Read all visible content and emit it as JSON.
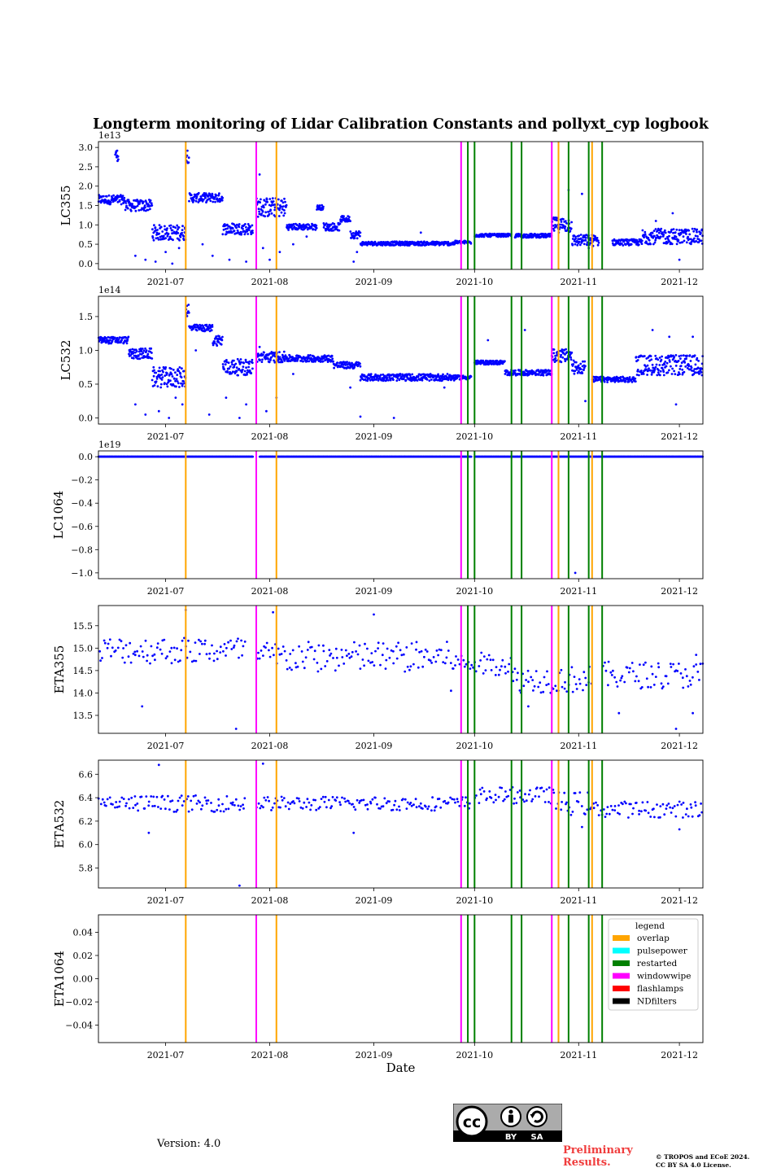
{
  "chart_data": {
    "type": "scatter",
    "title": "Longterm monitoring of Lidar Calibration Constants and pollyxt_cyp logbook",
    "xlabel": "Date",
    "x_range": [
      "2021-06-11",
      "2021-12-08"
    ],
    "x_ticks": [
      "2021-07-01",
      "2021-08-01",
      "2021-09-01",
      "2021-10-01",
      "2021-11-01",
      "2021-12-01"
    ],
    "x_tick_labels": [
      "2021-07",
      "2021-08",
      "2021-09",
      "2021-10",
      "2021-11",
      "2021-12"
    ],
    "marker_color": "#0000ff",
    "grid": false,
    "panels": [
      {
        "ylabel": "LC355",
        "offset_text": "1e13",
        "ylim": [
          -0.15,
          3.15
        ],
        "yticks": [
          0.0,
          0.5,
          1.0,
          1.5,
          2.0,
          2.5,
          3.0
        ],
        "ytick_labels": [
          "0.0",
          "0.5",
          "1.0",
          "1.5",
          "2.0",
          "2.5",
          "3.0"
        ],
        "series": [
          {
            "segments": [
              [
                "2021-06-11",
                "2021-06-19",
                1.65,
                0.12
              ],
              [
                "2021-06-16",
                "2021-06-17",
                2.8,
                0.15
              ],
              [
                "2021-06-19",
                "2021-06-27",
                1.5,
                0.15
              ],
              [
                "2021-06-27",
                "2021-07-07",
                0.8,
                0.2
              ],
              [
                "2021-07-07",
                "2021-07-08",
                2.8,
                0.2
              ],
              [
                "2021-07-08",
                "2021-07-18",
                1.7,
                0.12
              ],
              [
                "2021-07-18",
                "2021-07-27",
                0.9,
                0.15
              ],
              [
                "2021-07-28",
                "2021-08-06",
                1.45,
                0.25
              ],
              [
                "2021-08-06",
                "2021-08-15",
                0.95,
                0.08
              ],
              [
                "2021-08-15",
                "2021-08-17",
                1.45,
                0.06
              ],
              [
                "2021-08-17",
                "2021-08-22",
                0.95,
                0.1
              ],
              [
                "2021-08-22",
                "2021-08-25",
                1.15,
                0.08
              ],
              [
                "2021-08-25",
                "2021-08-28",
                0.75,
                0.1
              ],
              [
                "2021-08-28",
                "2021-09-25",
                0.52,
                0.05
              ],
              [
                "2021-09-25",
                "2021-09-30",
                0.55,
                0.04
              ],
              [
                "2021-10-01",
                "2021-10-12",
                0.73,
                0.04
              ],
              [
                "2021-10-13",
                "2021-10-24",
                0.72,
                0.05
              ],
              [
                "2021-10-24",
                "2021-10-30",
                1.0,
                0.2
              ],
              [
                "2021-10-30",
                "2021-11-07",
                0.6,
                0.15
              ],
              [
                "2021-11-11",
                "2021-11-20",
                0.55,
                0.08
              ],
              [
                "2021-11-20",
                "2021-12-08",
                0.7,
                0.2
              ]
            ],
            "outliers": [
              [
                "2021-06-22",
                0.2
              ],
              [
                "2021-06-25",
                0.1
              ],
              [
                "2021-06-28",
                0.05
              ],
              [
                "2021-07-01",
                0.3
              ],
              [
                "2021-07-03",
                0.0
              ],
              [
                "2021-07-05",
                0.4
              ],
              [
                "2021-07-12",
                0.5
              ],
              [
                "2021-07-15",
                0.2
              ],
              [
                "2021-07-20",
                0.1
              ],
              [
                "2021-07-25",
                0.05
              ],
              [
                "2021-07-29",
                2.3
              ],
              [
                "2021-07-30",
                0.4
              ],
              [
                "2021-08-01",
                0.1
              ],
              [
                "2021-08-04",
                0.3
              ],
              [
                "2021-08-08",
                0.5
              ],
              [
                "2021-08-12",
                0.7
              ],
              [
                "2021-08-26",
                0.05
              ],
              [
                "2021-08-27",
                0.3
              ],
              [
                "2021-09-15",
                0.8
              ],
              [
                "2021-10-29",
                1.9
              ],
              [
                "2021-11-02",
                1.8
              ],
              [
                "2021-11-04",
                0.4
              ],
              [
                "2021-11-24",
                1.1
              ],
              [
                "2021-11-29",
                1.3
              ],
              [
                "2021-12-01",
                0.1
              ]
            ]
          }
        ]
      },
      {
        "ylabel": "LC532",
        "offset_text": "1e14",
        "ylim": [
          -0.09,
          1.8
        ],
        "yticks": [
          0.0,
          0.5,
          1.0,
          1.5
        ],
        "ytick_labels": [
          "0.0",
          "0.5",
          "1.0",
          "1.5"
        ],
        "series": [
          {
            "segments": [
              [
                "2021-06-11",
                "2021-06-20",
                1.15,
                0.05
              ],
              [
                "2021-06-20",
                "2021-06-27",
                0.95,
                0.08
              ],
              [
                "2021-06-27",
                "2021-07-07",
                0.6,
                0.15
              ],
              [
                "2021-07-07",
                "2021-07-08",
                1.6,
                0.1
              ],
              [
                "2021-07-08",
                "2021-07-15",
                1.33,
                0.05
              ],
              [
                "2021-07-15",
                "2021-07-18",
                1.15,
                0.08
              ],
              [
                "2021-07-18",
                "2021-07-27",
                0.75,
                0.12
              ],
              [
                "2021-07-28",
                "2021-08-06",
                0.9,
                0.08
              ],
              [
                "2021-08-06",
                "2021-08-20",
                0.88,
                0.05
              ],
              [
                "2021-08-20",
                "2021-08-28",
                0.78,
                0.05
              ],
              [
                "2021-08-28",
                "2021-09-25",
                0.6,
                0.05
              ],
              [
                "2021-09-25",
                "2021-09-30",
                0.6,
                0.03
              ],
              [
                "2021-10-01",
                "2021-10-10",
                0.82,
                0.03
              ],
              [
                "2021-10-10",
                "2021-10-24",
                0.67,
                0.04
              ],
              [
                "2021-10-24",
                "2021-10-30",
                0.92,
                0.1
              ],
              [
                "2021-10-30",
                "2021-11-03",
                0.75,
                0.1
              ],
              [
                "2021-11-05",
                "2021-11-18",
                0.57,
                0.04
              ],
              [
                "2021-11-18",
                "2021-12-08",
                0.78,
                0.15
              ]
            ],
            "outliers": [
              [
                "2021-06-22",
                0.2
              ],
              [
                "2021-06-25",
                0.05
              ],
              [
                "2021-06-29",
                0.1
              ],
              [
                "2021-07-02",
                0.0
              ],
              [
                "2021-07-04",
                0.3
              ],
              [
                "2021-07-06",
                0.2
              ],
              [
                "2021-07-10",
                1.0
              ],
              [
                "2021-07-14",
                0.05
              ],
              [
                "2021-07-19",
                0.3
              ],
              [
                "2021-07-23",
                0.0
              ],
              [
                "2021-07-25",
                0.2
              ],
              [
                "2021-07-29",
                1.05
              ],
              [
                "2021-07-31",
                0.1
              ],
              [
                "2021-08-03",
                0.3
              ],
              [
                "2021-08-08",
                0.65
              ],
              [
                "2021-08-25",
                0.45
              ],
              [
                "2021-08-28",
                0.02
              ],
              [
                "2021-09-07",
                0.0
              ],
              [
                "2021-09-22",
                0.45
              ],
              [
                "2021-10-05",
                1.15
              ],
              [
                "2021-10-16",
                1.3
              ],
              [
                "2021-11-03",
                0.25
              ],
              [
                "2021-11-23",
                1.3
              ],
              [
                "2021-11-28",
                1.2
              ],
              [
                "2021-11-30",
                0.2
              ],
              [
                "2021-12-05",
                1.2
              ]
            ]
          }
        ]
      },
      {
        "ylabel": "LC1064",
        "offset_text": "1e19",
        "ylim": [
          -1.05,
          0.05
        ],
        "yticks": [
          0.0,
          -0.2,
          -0.4,
          -0.6,
          -0.8,
          -1.0
        ],
        "ytick_labels": [
          "0.0",
          "−0.2",
          "−0.4",
          "−0.6",
          "−0.8",
          "−1.0"
        ],
        "series": [
          {
            "segments": [
              [
                "2021-06-11",
                "2021-07-27",
                0.0,
                0.0
              ],
              [
                "2021-07-29",
                "2021-09-30",
                0.0,
                0.0
              ],
              [
                "2021-10-01",
                "2021-12-08",
                0.0,
                0.0
              ]
            ],
            "outliers": [
              [
                "2021-10-31",
                -1.0
              ]
            ]
          }
        ]
      },
      {
        "ylabel": "ETA355",
        "offset_text": "",
        "ylim": [
          13.1,
          15.95
        ],
        "yticks": [
          13.5,
          14.0,
          14.5,
          15.0,
          15.5
        ],
        "ytick_labels": [
          "13.5",
          "14.0",
          "14.5",
          "15.0",
          "15.5"
        ],
        "series": [
          {
            "segments": [
              [
                "2021-06-11",
                "2021-07-25",
                14.95,
                0.3
              ],
              [
                "2021-07-28",
                "2021-09-25",
                14.8,
                0.35
              ],
              [
                "2021-09-25",
                "2021-10-12",
                14.65,
                0.25
              ],
              [
                "2021-10-12",
                "2021-11-05",
                14.3,
                0.3
              ],
              [
                "2021-11-08",
                "2021-12-08",
                14.4,
                0.3
              ]
            ],
            "outliers": [
              [
                "2021-06-24",
                13.7
              ],
              [
                "2021-07-07",
                15.85
              ],
              [
                "2021-07-22",
                13.2
              ],
              [
                "2021-08-02",
                15.8
              ],
              [
                "2021-09-01",
                15.75
              ],
              [
                "2021-09-24",
                14.05
              ],
              [
                "2021-10-17",
                13.7
              ],
              [
                "2021-11-13",
                13.55
              ],
              [
                "2021-11-30",
                13.2
              ],
              [
                "2021-12-05",
                13.55
              ],
              [
                "2021-12-06",
                14.85
              ]
            ]
          }
        ]
      },
      {
        "ylabel": "ETA532",
        "offset_text": "",
        "ylim": [
          5.63,
          6.72
        ],
        "yticks": [
          5.8,
          6.0,
          6.2,
          6.4,
          6.6
        ],
        "ytick_labels": [
          "5.8",
          "6.0",
          "6.2",
          "6.4",
          "6.6"
        ],
        "series": [
          {
            "segments": [
              [
                "2021-06-11",
                "2021-07-25",
                6.35,
                0.07
              ],
              [
                "2021-07-28",
                "2021-09-30",
                6.35,
                0.06
              ],
              [
                "2021-10-01",
                "2021-10-25",
                6.42,
                0.07
              ],
              [
                "2021-10-25",
                "2021-11-05",
                6.35,
                0.1
              ],
              [
                "2021-11-05",
                "2021-12-08",
                6.3,
                0.07
              ]
            ],
            "outliers": [
              [
                "2021-06-26",
                6.1
              ],
              [
                "2021-06-29",
                6.68
              ],
              [
                "2021-07-23",
                5.65
              ],
              [
                "2021-07-30",
                6.69
              ],
              [
                "2021-08-26",
                6.1
              ],
              [
                "2021-11-02",
                6.15
              ],
              [
                "2021-12-01",
                6.13
              ]
            ]
          }
        ]
      },
      {
        "ylabel": "ETA1064",
        "offset_text": "",
        "ylim": [
          -0.055,
          0.055
        ],
        "yticks": [
          -0.04,
          -0.02,
          0.0,
          0.02,
          0.04
        ],
        "ytick_labels": [
          "−0.04",
          "−0.02",
          "0.00",
          "0.02",
          "0.04"
        ],
        "series": []
      }
    ],
    "events": [
      {
        "type": "overlap",
        "color": "#ffa500",
        "dates": [
          "2021-07-07",
          "2021-08-03",
          "2021-10-26",
          "2021-11-05"
        ]
      },
      {
        "type": "pulsepower",
        "color": "#00ffff",
        "dates": []
      },
      {
        "type": "restarted",
        "color": "#008000",
        "dates": [
          "2021-09-29",
          "2021-10-01",
          "2021-10-12",
          "2021-10-15",
          "2021-10-29",
          "2021-11-04",
          "2021-11-08"
        ]
      },
      {
        "type": "windowwipe",
        "color": "#ff00ff",
        "dates": [
          "2021-07-28",
          "2021-09-27",
          "2021-10-24"
        ]
      },
      {
        "type": "flashlamps",
        "color": "#ff0000",
        "dates": []
      },
      {
        "type": "NDfilters",
        "color": "#000000",
        "dates": []
      }
    ],
    "legend": {
      "title": "legend",
      "location": "right",
      "entries": [
        "overlap",
        "pulsepower",
        "restarted",
        "windowwipe",
        "flashlamps",
        "NDfilters"
      ]
    }
  },
  "footer": {
    "version": "Version: 4.0",
    "badge_icon": "cc-by-sa-icon",
    "badge_labels": [
      "BY",
      "SA"
    ],
    "preliminary": [
      "Preliminary",
      "Results."
    ],
    "copyright": [
      "© TROPOS and ECoE 2024.",
      "CC BY SA 4.0 License."
    ],
    "accent_color": "#f03c3c"
  }
}
